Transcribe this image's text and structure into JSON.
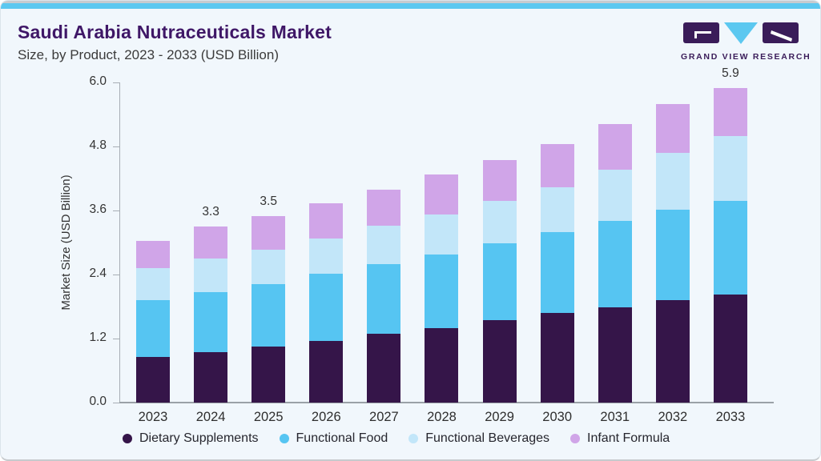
{
  "header": {
    "title": "Saudi Arabia Nutraceuticals Market",
    "subtitle": "Size, by Product, 2023 - 2033 (USD Billion)"
  },
  "logo": {
    "text": "GRAND VIEW RESEARCH"
  },
  "colors": {
    "accent_top": "#5cc8f0",
    "title": "#3f1767",
    "logo_purple": "#3a1c59",
    "axis": "#a7aeb5",
    "card_bg": "#f1f7fc"
  },
  "chart_data": {
    "type": "bar",
    "stacked": true,
    "title": "Saudi Arabia Nutraceuticals Market Size, by Product, 2023 - 2033 (USD Billion)",
    "ylabel": "Market Size (USD Billion)",
    "xlabel": "",
    "ylim": [
      0,
      6.0
    ],
    "yticks": [
      "6.0",
      "4.8",
      "3.6",
      "2.4",
      "1.2",
      "0.0"
    ],
    "grid": false,
    "legend_position": "bottom",
    "categories": [
      "2023",
      "2024",
      "2025",
      "2026",
      "2027",
      "2028",
      "2029",
      "2030",
      "2031",
      "2032",
      "2033"
    ],
    "series": [
      {
        "name": "Dietary Supplements",
        "color": "#351549",
        "values": [
          0.86,
          0.94,
          1.05,
          1.16,
          1.29,
          1.4,
          1.54,
          1.68,
          1.79,
          1.92,
          2.02
        ]
      },
      {
        "name": "Functional Food",
        "color": "#56c5f2",
        "values": [
          1.06,
          1.13,
          1.17,
          1.25,
          1.3,
          1.38,
          1.44,
          1.52,
          1.62,
          1.7,
          1.76
        ]
      },
      {
        "name": "Functional Beverages",
        "color": "#c2e6f9",
        "values": [
          0.6,
          0.63,
          0.65,
          0.67,
          0.73,
          0.75,
          0.8,
          0.84,
          0.95,
          1.06,
          1.22
        ]
      },
      {
        "name": "Infant Formula",
        "color": "#d0a5e8",
        "values": [
          0.51,
          0.6,
          0.63,
          0.65,
          0.67,
          0.74,
          0.77,
          0.81,
          0.86,
          0.91,
          0.9
        ]
      }
    ],
    "totals": [
      3.03,
      3.3,
      3.5,
      3.73,
      3.99,
      4.27,
      4.55,
      4.85,
      5.22,
      5.59,
      5.9
    ],
    "bar_labels": {
      "2024": "3.3",
      "2025": "3.5",
      "2033": "5.9"
    }
  }
}
